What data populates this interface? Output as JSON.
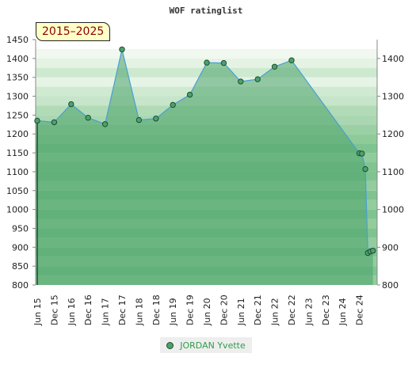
{
  "chart_data": {
    "type": "area",
    "title": "WOF ratinglist",
    "period": "2015–2025",
    "x_labels": [
      "Jun 15",
      "Dec 15",
      "Jun 16",
      "Dec 16",
      "Jun 17",
      "Dec 17",
      "Jun 18",
      "Dec 18",
      "Jun 19",
      "Dec 19",
      "Jun 20",
      "Dec 20",
      "Jun 21",
      "Dec 21",
      "Jun 22",
      "Dec 22",
      "Jun 23",
      "Dec 23",
      "Jun 24",
      "Dec 24"
    ],
    "y_left": {
      "min": 800,
      "max": 1450,
      "ticks": [
        800,
        850,
        900,
        950,
        1000,
        1050,
        1100,
        1150,
        1200,
        1250,
        1300,
        1350,
        1400,
        1450
      ]
    },
    "y_right": {
      "ticks": [
        800,
        900,
        1000,
        1100,
        1200,
        1300,
        1400
      ]
    },
    "grid": true,
    "legend_position": "bottom-center",
    "series": [
      {
        "name": "JORDAN Yvette",
        "color": "#4aa36a",
        "line_color": "#4a9fd4",
        "points": [
          {
            "x": 0.0,
            "y": 1235
          },
          {
            "x": 1.0,
            "y": 1231
          },
          {
            "x": 2.0,
            "y": 1279
          },
          {
            "x": 3.0,
            "y": 1243
          },
          {
            "x": 4.0,
            "y": 1226
          },
          {
            "x": 5.0,
            "y": 1424
          },
          {
            "x": 6.0,
            "y": 1237
          },
          {
            "x": 7.0,
            "y": 1241
          },
          {
            "x": 8.0,
            "y": 1277
          },
          {
            "x": 9.0,
            "y": 1304
          },
          {
            "x": 10.0,
            "y": 1389
          },
          {
            "x": 11.0,
            "y": 1388
          },
          {
            "x": 12.0,
            "y": 1339
          },
          {
            "x": 13.0,
            "y": 1345
          },
          {
            "x": 14.0,
            "y": 1378
          },
          {
            "x": 15.0,
            "y": 1395
          },
          {
            "x": 19.0,
            "y": 1149
          },
          {
            "x": 19.15,
            "y": 1148
          },
          {
            "x": 19.35,
            "y": 1107
          },
          {
            "x": 19.5,
            "y": 885
          },
          {
            "x": 19.65,
            "y": 889
          },
          {
            "x": 19.8,
            "y": 891
          }
        ]
      }
    ]
  }
}
